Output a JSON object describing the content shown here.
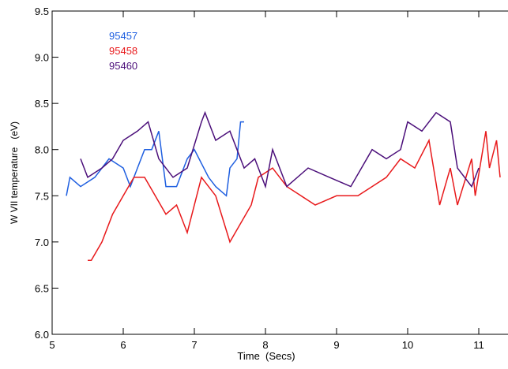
{
  "chart_data": {
    "type": "line",
    "xlabel": "Time  (Secs)",
    "ylabel": "W VII temperature   (eV)",
    "xlim": [
      5,
      11.41
    ],
    "ylim": [
      6.0,
      9.5
    ],
    "xticks": [
      5,
      6,
      7,
      8,
      9,
      10,
      11
    ],
    "yticks": [
      {
        "value": 6,
        "label": "6.0"
      },
      {
        "value": 6.5,
        "label": "6.5"
      },
      {
        "value": 7,
        "label": "7.0"
      },
      {
        "value": 7.5,
        "label": "7.5"
      },
      {
        "value": 8,
        "label": "8.0"
      },
      {
        "value": 8.5,
        "label": "8.5"
      },
      {
        "value": 9,
        "label": "9.0"
      },
      {
        "value": 9.5,
        "label": "9.5"
      }
    ],
    "series": [
      {
        "name": "95457",
        "color": "#1f5fe0",
        "x": [
          5.2,
          5.25,
          5.4,
          5.6,
          5.8,
          6.0,
          6.1,
          6.2,
          6.3,
          6.4,
          6.5,
          6.6,
          6.75,
          6.9,
          7.0,
          7.2,
          7.3,
          7.45,
          7.5,
          7.6,
          7.65,
          7.7
        ],
        "values": [
          7.5,
          7.7,
          7.6,
          7.7,
          7.9,
          7.8,
          7.6,
          7.8,
          8.0,
          8.0,
          8.2,
          7.6,
          7.6,
          7.9,
          8.0,
          7.7,
          7.6,
          7.5,
          7.8,
          7.9,
          8.3,
          8.3
        ]
      },
      {
        "name": "95458",
        "color": "#e8191b",
        "x": [
          5.5,
          5.55,
          5.7,
          5.85,
          6.0,
          6.15,
          6.3,
          6.45,
          6.6,
          6.75,
          6.9,
          7.1,
          7.3,
          7.5,
          7.8,
          7.9,
          8.1,
          8.3,
          8.5,
          8.7,
          9.0,
          9.3,
          9.5,
          9.7,
          9.9,
          10.1,
          10.3,
          10.45,
          10.6,
          10.7,
          10.9,
          10.95,
          11.1,
          11.15,
          11.25,
          11.3
        ],
        "values": [
          6.8,
          6.8,
          7.0,
          7.3,
          7.5,
          7.7,
          7.7,
          7.5,
          7.3,
          7.4,
          7.1,
          7.7,
          7.5,
          7.0,
          7.4,
          7.7,
          7.8,
          7.6,
          7.5,
          7.4,
          7.5,
          7.5,
          7.6,
          7.7,
          7.9,
          7.8,
          8.1,
          7.4,
          7.8,
          7.4,
          7.9,
          7.5,
          8.2,
          7.8,
          8.1,
          7.7
        ]
      },
      {
        "name": "95460",
        "color": "#4b0f7a",
        "x": [
          5.4,
          5.5,
          5.7,
          5.85,
          6.0,
          6.2,
          6.35,
          6.5,
          6.7,
          6.9,
          7.1,
          7.15,
          7.3,
          7.5,
          7.7,
          7.85,
          8.0,
          8.1,
          8.3,
          8.6,
          8.9,
          9.2,
          9.5,
          9.7,
          9.9,
          10.0,
          10.2,
          10.4,
          10.6,
          10.7,
          10.9,
          11.0
        ],
        "values": [
          7.9,
          7.7,
          7.8,
          7.9,
          8.1,
          8.2,
          8.3,
          7.9,
          7.7,
          7.8,
          8.3,
          8.4,
          8.1,
          8.2,
          7.8,
          7.9,
          7.6,
          8.0,
          7.6,
          7.8,
          7.7,
          7.6,
          8.0,
          7.9,
          8.0,
          8.3,
          8.2,
          8.4,
          8.3,
          7.8,
          7.6,
          7.8
        ]
      }
    ]
  }
}
